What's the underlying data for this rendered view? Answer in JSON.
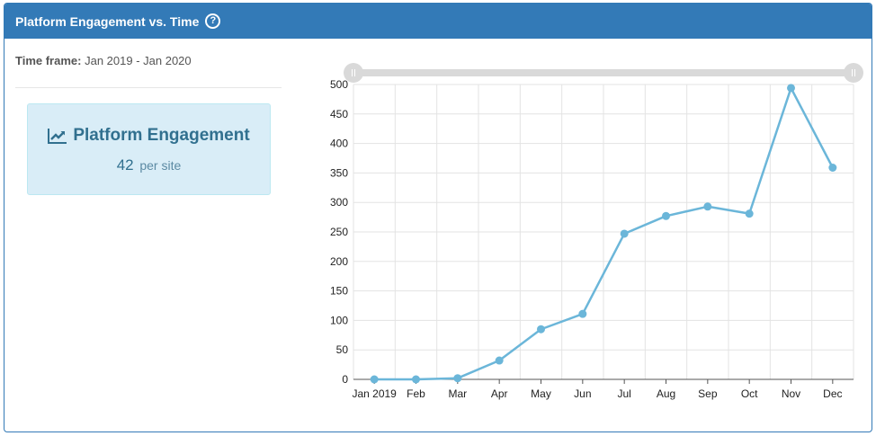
{
  "header": {
    "title": "Platform Engagement vs. Time",
    "help_icon": "question-circle-icon"
  },
  "timeframe": {
    "label": "Time frame:",
    "value": "Jan 2019 - Jan 2020"
  },
  "stat_card": {
    "icon": "line-chart-icon",
    "title": "Platform Engagement",
    "value": "42",
    "unit": "per site"
  },
  "colors": {
    "header_bg": "#337ab7",
    "card_bg": "#d9edf7",
    "card_text": "#31708f",
    "series": "#6bb6d9",
    "slider": "#d9d9d9"
  },
  "chart_data": {
    "type": "line",
    "categories": [
      "Jan 2019",
      "Feb",
      "Mar",
      "Apr",
      "May",
      "Jun",
      "Jul",
      "Aug",
      "Sep",
      "Oct",
      "Nov",
      "Dec"
    ],
    "series": [
      {
        "values": [
          0,
          0,
          2,
          32,
          85,
          111,
          247,
          277,
          293,
          281,
          494,
          359
        ]
      }
    ],
    "ylim": [
      0,
      500
    ],
    "yticks": [
      0,
      50,
      100,
      150,
      200,
      250,
      300,
      350,
      400,
      450,
      500
    ],
    "grid": true,
    "legend": "none",
    "range_slider": {
      "start": 0,
      "end": 1
    }
  }
}
